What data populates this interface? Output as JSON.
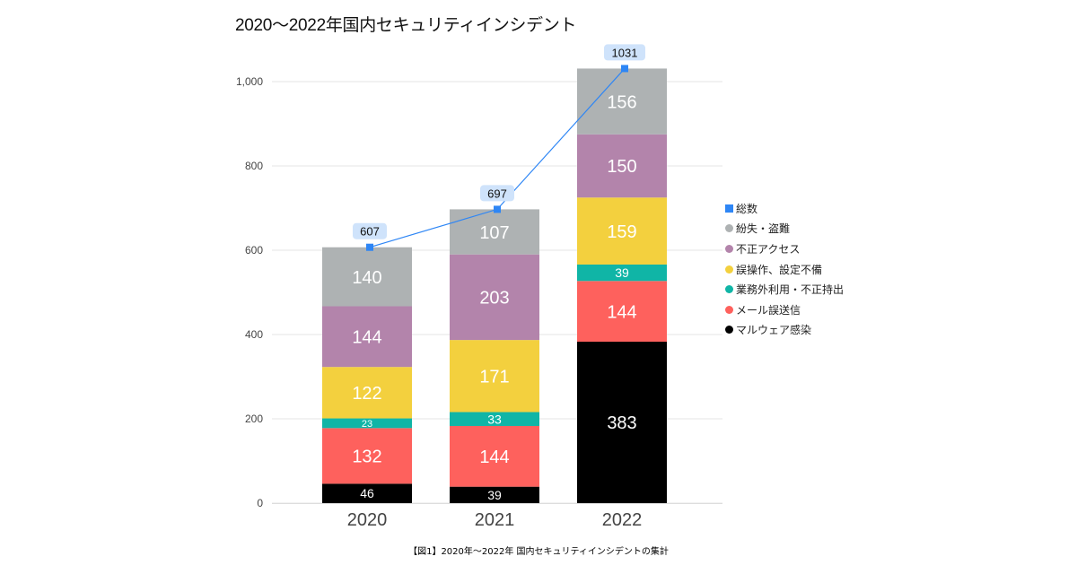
{
  "title": "2020～2022年国内セキュリティインシデント",
  "caption": "【図1】2020年～2022年 国内セキュリティインシデントの集計",
  "legend": {
    "items": [
      {
        "label": "総数",
        "color": "#2e86f5",
        "shape": "square"
      },
      {
        "label": "紛失・盗難",
        "color": "#aeb2b3",
        "shape": "circle"
      },
      {
        "label": "不正アクセス",
        "color": "#b384ab",
        "shape": "circle"
      },
      {
        "label": "誤操作、設定不備",
        "color": "#f3d03e",
        "shape": "circle"
      },
      {
        "label": "業務外利用・不正持出",
        "color": "#10b5a6",
        "shape": "circle"
      },
      {
        "label": "メール誤送信",
        "color": "#fe615d",
        "shape": "circle"
      },
      {
        "label": "マルウェア感染",
        "color": "#000000",
        "shape": "circle"
      }
    ]
  },
  "chart_data": {
    "type": "bar",
    "stacked": true,
    "title": "2020～2022年国内セキュリティインシデント",
    "xlabel": "",
    "ylabel": "",
    "categories": [
      "2020",
      "2021",
      "2022"
    ],
    "ylim": [
      0,
      1000
    ],
    "yticks": [
      0,
      200,
      400,
      600,
      800,
      1000
    ],
    "ytick_labels": [
      "0",
      "200",
      "400",
      "600",
      "800",
      "1,000"
    ],
    "grid": true,
    "legend_position": "right",
    "series": [
      {
        "name": "マルウェア感染",
        "color": "#000000",
        "values": [
          46,
          39,
          383
        ]
      },
      {
        "name": "メール誤送信",
        "color": "#fe615d",
        "values": [
          132,
          144,
          144
        ]
      },
      {
        "name": "業務外利用・不正持出",
        "color": "#10b5a6",
        "values": [
          23,
          33,
          39
        ]
      },
      {
        "name": "誤操作、設定不備",
        "color": "#f3d03e",
        "values": [
          122,
          171,
          159
        ]
      },
      {
        "name": "不正アクセス",
        "color": "#b384ab",
        "values": [
          144,
          203,
          150
        ]
      },
      {
        "name": "紛失・盗難",
        "color": "#aeb2b3",
        "values": [
          140,
          107,
          156
        ]
      }
    ],
    "line_series": {
      "name": "総数",
      "type": "line",
      "color": "#2e86f5",
      "label_bg": "#cfe3fb",
      "values": [
        607,
        697,
        1031
      ]
    }
  }
}
